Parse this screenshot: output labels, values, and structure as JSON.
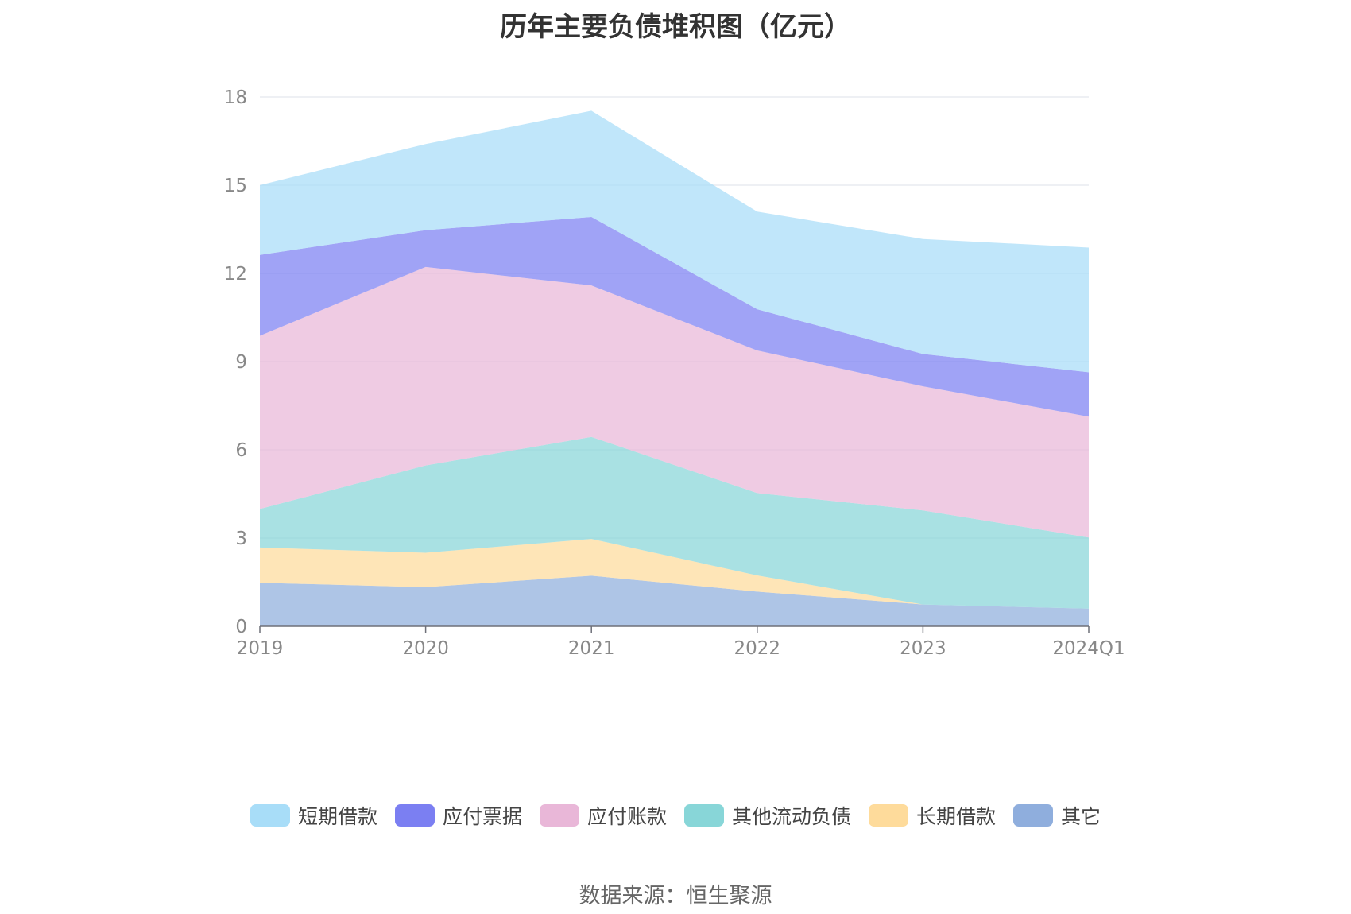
{
  "chart_data": {
    "type": "area",
    "stacked": true,
    "title": "历年主要负债堆积图（亿元）",
    "categories": [
      "2019",
      "2020",
      "2021",
      "2022",
      "2023",
      "2024Q1"
    ],
    "ylim": [
      0,
      18
    ],
    "yticks": [
      "0",
      "3",
      "6",
      "9",
      "12",
      "15",
      "18"
    ],
    "grid": true,
    "legend_position": "bottom",
    "series": [
      {
        "name": "其它",
        "color": "#8faedd",
        "values": [
          1.48,
          1.33,
          1.72,
          1.18,
          0.74,
          0.6
        ]
      },
      {
        "name": "长期借款",
        "color": "#fedb9b",
        "values": [
          1.2,
          1.17,
          1.25,
          0.55,
          0.0,
          0.0
        ]
      },
      {
        "name": "其他流动负债",
        "color": "#88d6d8",
        "values": [
          1.31,
          2.97,
          3.47,
          2.8,
          3.2,
          2.42
        ]
      },
      {
        "name": "应付账款",
        "color": "#e9b7d8",
        "values": [
          5.89,
          6.75,
          5.15,
          4.85,
          4.22,
          4.11
        ]
      },
      {
        "name": "应付票据",
        "color": "#7b7ff2",
        "values": [
          2.75,
          1.25,
          2.33,
          1.4,
          1.1,
          1.51
        ]
      },
      {
        "name": "短期借款",
        "color": "#a8ddf8",
        "values": [
          2.37,
          2.93,
          3.61,
          3.32,
          3.91,
          4.24
        ]
      }
    ]
  },
  "legend": [
    {
      "label": "短期借款",
      "color": "#a8ddf8"
    },
    {
      "label": "应付票据",
      "color": "#7b7ff2"
    },
    {
      "label": "应付账款",
      "color": "#e9b7d8"
    },
    {
      "label": "其他流动负债",
      "color": "#88d6d8"
    },
    {
      "label": "长期借款",
      "color": "#fedb9b"
    },
    {
      "label": "其它",
      "color": "#8faedd"
    }
  ],
  "source": "数据来源：恒生聚源"
}
